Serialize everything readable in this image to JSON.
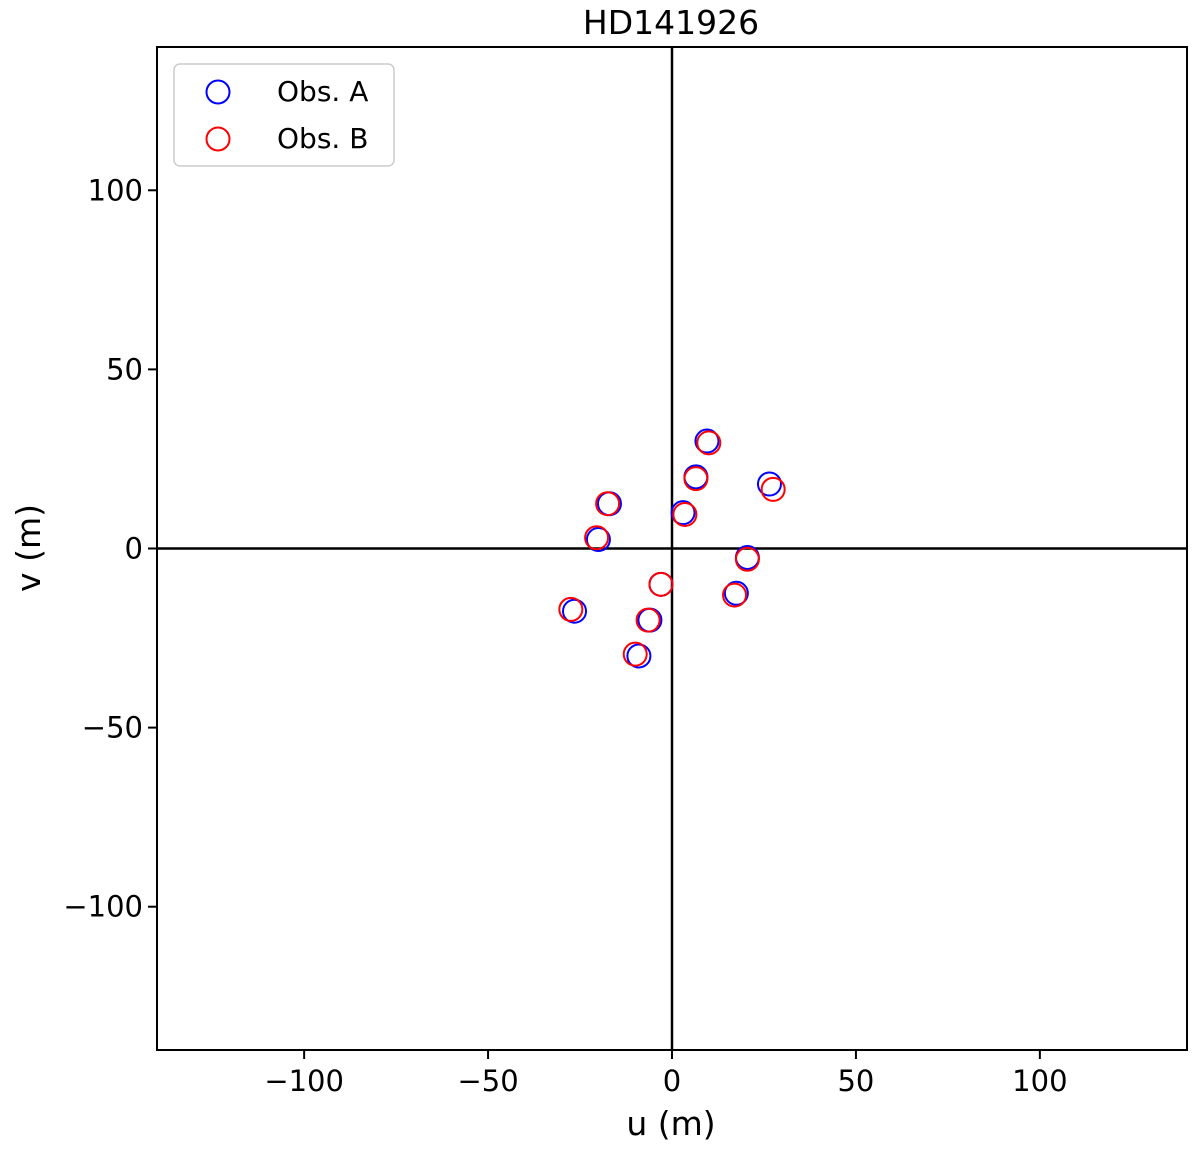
{
  "chart_data": {
    "type": "scatter",
    "title": "HD141926",
    "xlabel": "u (m)",
    "ylabel": "v (m)",
    "xlim": [
      -140,
      140
    ],
    "ylim": [
      -140,
      140
    ],
    "xticks": [
      -100,
      -50,
      0,
      50,
      100
    ],
    "yticks": [
      -100,
      -50,
      0,
      50,
      100
    ],
    "xtick_labels": [
      "−100",
      "−50",
      "0",
      "50",
      "100"
    ],
    "ytick_labels": [
      "−100",
      "−50",
      "0",
      "50",
      "100"
    ],
    "reference_lines": {
      "x": 0,
      "y": 0
    },
    "grid": false,
    "legend_position": "top-left",
    "marker": "open-circle",
    "series": [
      {
        "name": "Obs. A",
        "color": "#0000ff",
        "points": [
          [
            9.5,
            30
          ],
          [
            26.5,
            18
          ],
          [
            6.5,
            20
          ],
          [
            -17,
            12.5
          ],
          [
            3,
            10
          ],
          [
            -20,
            2.5
          ],
          [
            20.5,
            -2.5
          ],
          [
            -3,
            -10
          ],
          [
            17.5,
            -12.5
          ],
          [
            -26.5,
            -17.5
          ],
          [
            -6,
            -20
          ],
          [
            -9,
            -30
          ]
        ]
      },
      {
        "name": "Obs. B",
        "color": "#ff0000",
        "points": [
          [
            10,
            29.5
          ],
          [
            27.5,
            16.5
          ],
          [
            6.5,
            19.5
          ],
          [
            -17.5,
            12.5
          ],
          [
            3.5,
            9.5
          ],
          [
            -20.5,
            3
          ],
          [
            20.5,
            -3
          ],
          [
            -3,
            -10
          ],
          [
            17,
            -13
          ],
          [
            -27.5,
            -17
          ],
          [
            -6.5,
            -20
          ],
          [
            -10,
            -29.5
          ]
        ]
      }
    ]
  }
}
